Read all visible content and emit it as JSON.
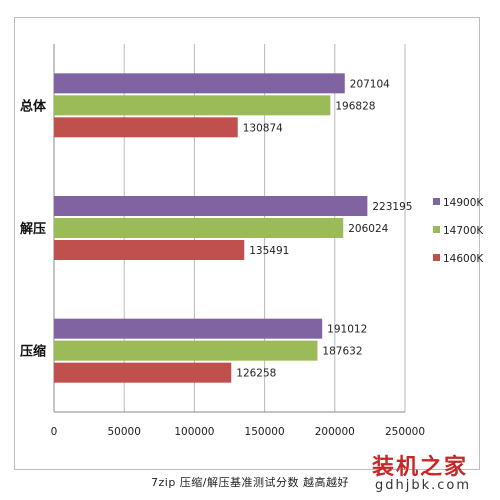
{
  "chart_data": {
    "type": "bar",
    "orientation": "horizontal",
    "categories": [
      "总体",
      "解压",
      "压缩"
    ],
    "series": [
      {
        "name": "14900K",
        "color": "#8064a2",
        "values": [
          207104,
          223195,
          191012
        ]
      },
      {
        "name": "14700K",
        "color": "#9bbb59",
        "values": [
          196828,
          206024,
          187632
        ]
      },
      {
        "name": "14600K",
        "color": "#c0504d",
        "values": [
          130874,
          135491,
          126258
        ]
      }
    ],
    "xlim": [
      0,
      250000
    ],
    "xticks": [
      0,
      50000,
      100000,
      150000,
      200000,
      250000
    ],
    "grid": true,
    "legend_position": "right"
  },
  "caption": "7zip  压缩/解压基准测试分数  越高越好",
  "watermark": {
    "title": "装机之家",
    "url": "gdhjbk.com"
  }
}
